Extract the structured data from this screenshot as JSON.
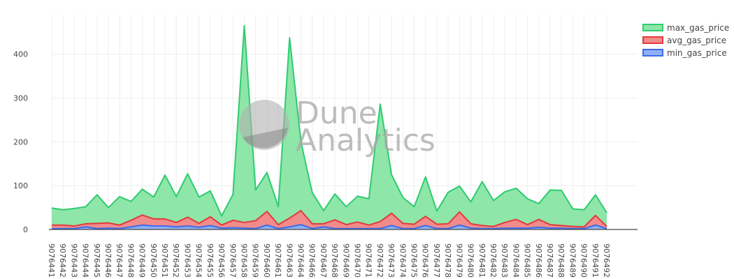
{
  "colors": {
    "max": "#2ecc71",
    "max_fill": "#8ee6a8",
    "avg": "#e03b3b",
    "avg_fill": "#f28b8b",
    "min": "#3d6be8",
    "min_fill": "#8fb0f5",
    "grid": "#eeeeee",
    "axis": "#444444"
  },
  "watermark": {
    "line1": "Dune",
    "line2": "Analytics"
  },
  "chart_data": {
    "type": "area",
    "title": "",
    "xlabel": "",
    "ylabel": "",
    "ylim": [
      0,
      490
    ],
    "yticks": [
      0,
      100,
      200,
      300,
      400
    ],
    "grid": true,
    "legend_position": "top-right",
    "x": [
      "9076441",
      "9076442",
      "9076443",
      "9076444",
      "9076445",
      "9076446",
      "9076447",
      "9076448",
      "9076449",
      "9076450",
      "9076451",
      "9076452",
      "9076453",
      "9076454",
      "9076455",
      "9076456",
      "9076457",
      "9076458",
      "9076459",
      "9076460",
      "9076461",
      "9076463",
      "9076464",
      "9076466",
      "9076467",
      "9076468",
      "9076469",
      "9076470",
      "9076471",
      "9076472",
      "9076473",
      "9076474",
      "9076475",
      "9076476",
      "9076477",
      "9076478",
      "9076479",
      "9076480",
      "9076481",
      "9076482",
      "9076483",
      "9076484",
      "9076485",
      "9076486",
      "9076487",
      "9076488",
      "9076489",
      "9076490",
      "9076491",
      "9076492"
    ],
    "series": [
      {
        "name": "max_gas_price",
        "values": [
          49,
          45,
          48,
          52,
          79,
          50,
          75,
          64,
          92,
          74,
          124,
          75,
          127,
          74,
          88,
          31,
          80,
          465,
          90,
          130,
          52,
          437,
          200,
          84,
          43,
          81,
          52,
          76,
          70,
          286,
          125,
          73,
          52,
          120,
          42,
          85,
          99,
          63,
          109,
          66,
          86,
          94,
          70,
          59,
          90,
          89,
          47,
          45,
          79,
          38
        ]
      },
      {
        "name": "avg_gas_price",
        "values": [
          10,
          10,
          8,
          13,
          14,
          15,
          10,
          21,
          33,
          24,
          24,
          16,
          28,
          14,
          29,
          10,
          21,
          16,
          20,
          41,
          11,
          26,
          43,
          13,
          13,
          22,
          11,
          17,
          10,
          18,
          37,
          14,
          12,
          30,
          12,
          13,
          40,
          13,
          9,
          7,
          16,
          23,
          11,
          23,
          11,
          9,
          7,
          6,
          32,
          7
        ]
      },
      {
        "name": "min_gas_price",
        "values": [
          2,
          2,
          2,
          6,
          2,
          3,
          2,
          6,
          10,
          8,
          8,
          6,
          8,
          5,
          9,
          3,
          4,
          3,
          2,
          10,
          2,
          6,
          11,
          2,
          6,
          2,
          2,
          2,
          2,
          2,
          9,
          2,
          2,
          9,
          2,
          2,
          10,
          3,
          2,
          2,
          3,
          3,
          3,
          5,
          3,
          3,
          2,
          2,
          10,
          2
        ]
      }
    ]
  }
}
